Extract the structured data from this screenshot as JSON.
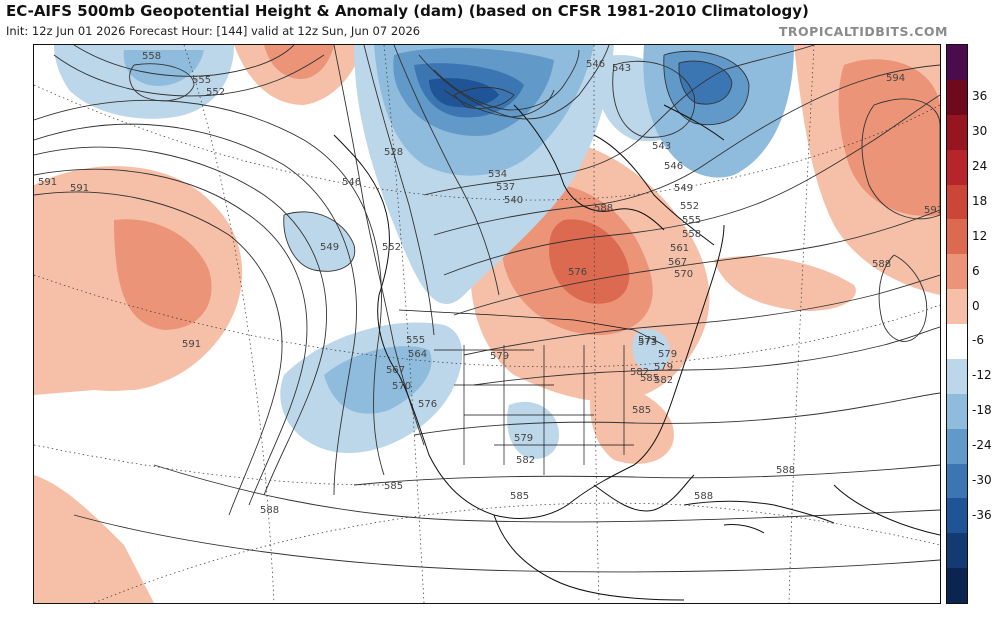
{
  "header": {
    "title": "EC-AIFS 500mb Geopotential Height & Anomaly (dam) (based on CFSR 1981-2010 Climatology)",
    "subtitle": "Init: 12z Jun 01 2026   Forecast Hour: [144]   valid at 12z Sun, Jun 07 2026",
    "brand": "TROPICALTIDBITS.COM"
  },
  "colorbar": {
    "ticks": [
      "36",
      "30",
      "24",
      "18",
      "12",
      "6",
      "0",
      "-6",
      "-12",
      "-18",
      "-24",
      "-30",
      "-36"
    ],
    "colors": [
      "#4b0b4f",
      "#6e0a1c",
      "#951620",
      "#b5252a",
      "#cc4637",
      "#dc6a50",
      "#eb9478",
      "#f6c0a8",
      "#ffffff",
      "#bcd7ea",
      "#8fbcdd",
      "#6199c9",
      "#3b76b3",
      "#1f5597",
      "#133b72",
      "#0b2550"
    ]
  },
  "map": {
    "contour_labels": [
      "558",
      "555",
      "552",
      "591",
      "591",
      "549",
      "552",
      "528",
      "534",
      "537",
      "540",
      "543",
      "546",
      "549",
      "552",
      "555",
      "558",
      "561",
      "567",
      "570",
      "573",
      "576",
      "579",
      "582",
      "585",
      "588",
      "591",
      "594",
      "588",
      "585",
      "588",
      "591",
      "588",
      "585",
      "555",
      "564",
      "567",
      "570",
      "576",
      "579",
      "582",
      "579",
      "573",
      "579",
      "582",
      "585",
      "588",
      "546",
      "543",
      "546"
    ]
  }
}
